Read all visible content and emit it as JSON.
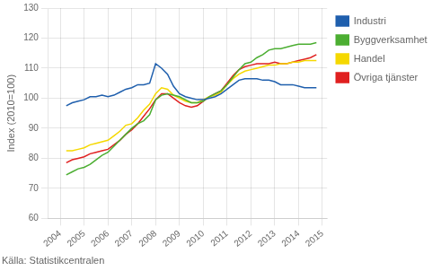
{
  "chart_data": {
    "type": "line",
    "ylabel": "Index (2010=100)",
    "annotations": [
      "Källa: Statistikcentralen"
    ],
    "xlim": [
      2003.5,
      2015.2
    ],
    "xticks": [
      2004,
      2005,
      2006,
      2007,
      2008,
      2009,
      2010,
      2011,
      2012,
      2013,
      2014,
      2015
    ],
    "ylim": [
      60,
      130
    ],
    "yticks": [
      60,
      70,
      80,
      90,
      100,
      110,
      120,
      130
    ],
    "grid": true,
    "legend": "right",
    "x": [
      2004.25,
      2004.5,
      2004.75,
      2005.0,
      2005.25,
      2005.5,
      2005.75,
      2006.0,
      2006.25,
      2006.5,
      2006.75,
      2007.0,
      2007.25,
      2007.5,
      2007.75,
      2008.0,
      2008.25,
      2008.5,
      2008.75,
      2009.0,
      2009.25,
      2009.5,
      2009.75,
      2010.0,
      2010.25,
      2010.5,
      2010.75,
      2011.0,
      2011.25,
      2011.5,
      2011.75,
      2012.0,
      2012.25,
      2012.5,
      2012.75,
      2013.0,
      2013.25,
      2013.5,
      2013.75,
      2014.0,
      2014.25,
      2014.5,
      2014.75
    ],
    "series": [
      {
        "name": "Industri",
        "color": "#1f5fad",
        "values": [
          97.5,
          98.5,
          99.0,
          99.5,
          100.5,
          100.5,
          101.0,
          100.5,
          101.0,
          102.0,
          103.0,
          103.5,
          104.5,
          104.5,
          105.0,
          111.5,
          110.0,
          108.0,
          104.0,
          101.5,
          100.5,
          100.0,
          99.5,
          99.5,
          100.0,
          100.5,
          101.5,
          103.0,
          104.5,
          106.0,
          106.5,
          106.5,
          106.5,
          106.0,
          106.0,
          105.5,
          104.5,
          104.5,
          104.5,
          104.0,
          103.5,
          103.5,
          103.5
        ]
      },
      {
        "name": "Byggverksamhet",
        "color": "#4cae32",
        "values": [
          74.5,
          75.5,
          76.5,
          77.0,
          78.0,
          79.5,
          81.0,
          82.0,
          84.0,
          86.0,
          88.0,
          90.0,
          91.5,
          92.5,
          94.5,
          99.5,
          101.0,
          101.5,
          101.0,
          100.5,
          99.5,
          98.5,
          98.5,
          99.0,
          100.5,
          101.5,
          102.5,
          104.5,
          107.0,
          109.5,
          111.5,
          112.0,
          113.5,
          114.5,
          116.0,
          116.5,
          116.5,
          117.0,
          117.5,
          118.0,
          118.0,
          118.0,
          118.5
        ]
      },
      {
        "name": "Handel",
        "color": "#f5d800",
        "values": [
          82.5,
          82.5,
          83.0,
          83.5,
          84.5,
          85.0,
          85.5,
          86.0,
          87.5,
          89.0,
          91.0,
          91.5,
          93.5,
          96.0,
          98.0,
          101.5,
          103.5,
          103.0,
          101.0,
          100.0,
          99.0,
          98.5,
          98.5,
          99.5,
          100.5,
          101.0,
          102.0,
          104.5,
          106.5,
          108.0,
          109.0,
          109.5,
          110.0,
          110.5,
          111.0,
          111.0,
          111.5,
          111.5,
          112.0,
          112.0,
          112.5,
          112.5,
          112.5
        ]
      },
      {
        "name": "Övriga tjänster",
        "color": "#e02020",
        "values": [
          78.5,
          79.5,
          80.0,
          80.5,
          81.5,
          82.0,
          82.5,
          83.0,
          84.5,
          86.0,
          88.0,
          89.5,
          91.5,
          94.0,
          96.5,
          99.5,
          101.5,
          101.5,
          100.0,
          98.5,
          97.5,
          97.0,
          97.5,
          99.0,
          100.5,
          101.5,
          102.5,
          105.0,
          107.5,
          109.5,
          110.5,
          111.0,
          111.5,
          111.5,
          111.5,
          112.0,
          111.5,
          111.5,
          112.0,
          112.5,
          113.0,
          113.5,
          114.5
        ]
      }
    ]
  }
}
